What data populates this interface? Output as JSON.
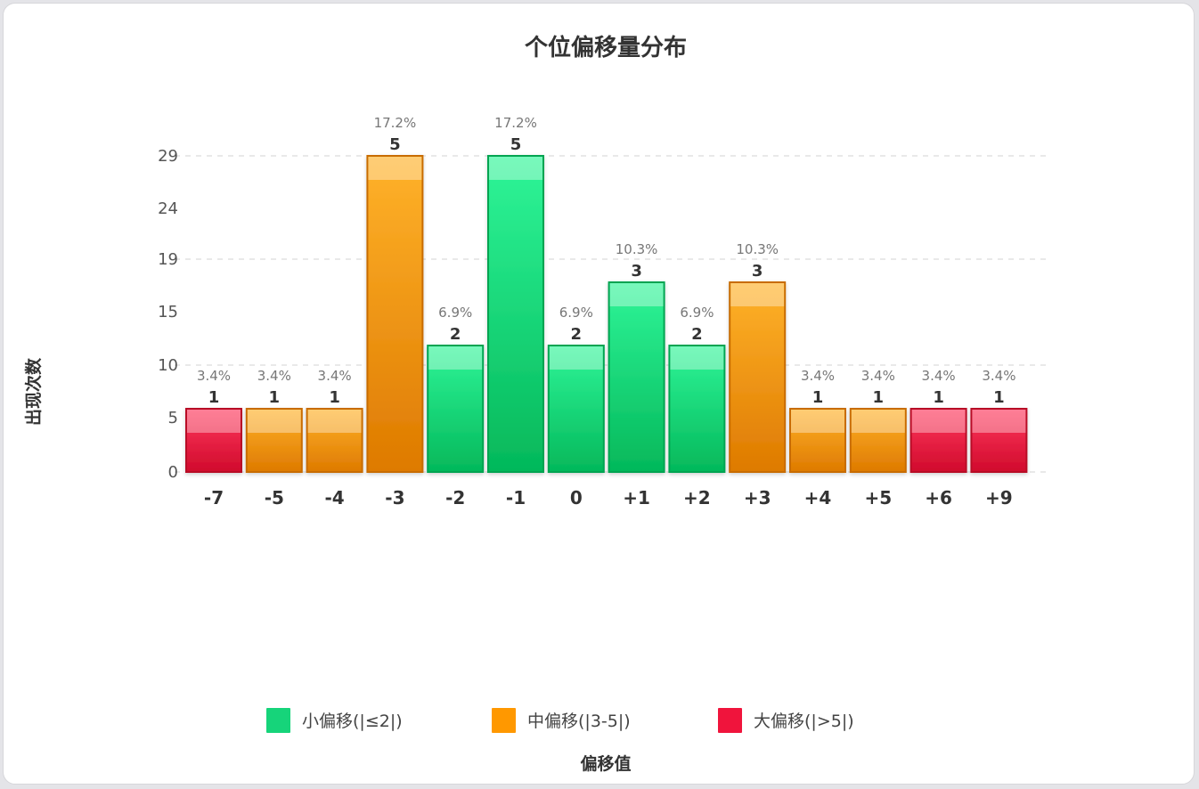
{
  "chart_data": {
    "type": "bar",
    "title": "个位偏移量分布",
    "xlabel": "偏移值",
    "ylabel": "出现次数",
    "categories": [
      "-7",
      "-5",
      "-4",
      "-3",
      "-2",
      "-1",
      "0",
      "+1",
      "+2",
      "+3",
      "+4",
      "+5",
      "+6",
      "+9"
    ],
    "values": [
      1,
      1,
      1,
      5,
      2,
      5,
      2,
      3,
      2,
      3,
      1,
      1,
      1,
      1
    ],
    "percent_labels": [
      "3.4%",
      "3.4%",
      "3.4%",
      "17.2%",
      "6.9%",
      "17.2%",
      "6.9%",
      "10.3%",
      "6.9%",
      "10.3%",
      "3.4%",
      "3.4%",
      "3.4%",
      "3.4%"
    ],
    "groups": [
      "large",
      "medium",
      "medium",
      "medium",
      "small",
      "small",
      "small",
      "small",
      "small",
      "medium",
      "medium",
      "medium",
      "large",
      "large"
    ],
    "yticks": [
      "0",
      "5",
      "10",
      "15",
      "19",
      "24",
      "29"
    ],
    "ylim": [
      0,
      5
    ],
    "grid": true,
    "legend_position": "bottom",
    "legend": [
      {
        "key": "small",
        "label": "小偏移(|≤2|)",
        "color": "#16d47a"
      },
      {
        "key": "medium",
        "label": "中偏移(|3-5|)",
        "color": "#ff9800"
      },
      {
        "key": "large",
        "label": "大偏移(|>5|)",
        "color": "#f0143c"
      }
    ]
  }
}
